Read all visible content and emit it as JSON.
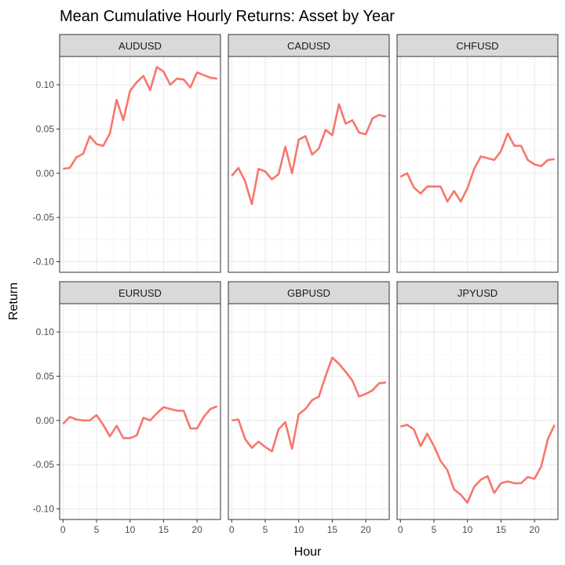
{
  "chart_data": {
    "type": "line",
    "title": "Mean Cumulative Hourly Returns: Asset by Year",
    "xlabel": "Hour",
    "ylabel": "Return",
    "xlim": [
      -0.5,
      23.5
    ],
    "ylim": [
      -0.112,
      0.132
    ],
    "x_ticks": [
      0,
      5,
      10,
      15,
      20
    ],
    "x_tick_labels": [
      "0",
      "5",
      "10",
      "15",
      "20"
    ],
    "y_ticks": [
      -0.1,
      -0.05,
      0.0,
      0.05,
      0.1
    ],
    "y_tick_labels": [
      "-0.10",
      "-0.05",
      "0.00",
      "0.05",
      "0.10"
    ],
    "grid": true,
    "line_color": "#F8766D",
    "x": [
      0,
      1,
      2,
      3,
      4,
      5,
      6,
      7,
      8,
      9,
      10,
      11,
      12,
      13,
      14,
      15,
      16,
      17,
      18,
      19,
      20,
      21,
      22,
      23
    ],
    "panels": [
      {
        "name": "AUDUSD",
        "values": [
          0.005,
          0.006,
          0.018,
          0.022,
          0.042,
          0.033,
          0.031,
          0.045,
          0.083,
          0.06,
          0.093,
          0.103,
          0.11,
          0.094,
          0.12,
          0.115,
          0.1,
          0.107,
          0.106,
          0.097,
          0.114,
          0.111,
          0.108,
          0.107
        ]
      },
      {
        "name": "CADUSD",
        "values": [
          -0.003,
          0.006,
          -0.009,
          -0.035,
          0.005,
          0.002,
          -0.007,
          -0.001,
          0.03,
          0.0,
          0.038,
          0.042,
          0.021,
          0.028,
          0.049,
          0.043,
          0.078,
          0.056,
          0.06,
          0.046,
          0.044,
          0.062,
          0.066,
          0.064
        ]
      },
      {
        "name": "CHFUSD",
        "values": [
          -0.004,
          0.0,
          -0.016,
          -0.023,
          -0.015,
          -0.015,
          -0.015,
          -0.032,
          -0.02,
          -0.032,
          -0.017,
          0.005,
          0.019,
          0.017,
          0.015,
          0.025,
          0.045,
          0.031,
          0.031,
          0.015,
          0.01,
          0.008,
          0.015,
          0.016
        ]
      },
      {
        "name": "EURUSD",
        "values": [
          -0.004,
          0.004,
          0.001,
          0.0,
          0.0,
          0.006,
          -0.005,
          -0.018,
          -0.006,
          -0.02,
          -0.02,
          -0.017,
          0.003,
          0.0,
          0.008,
          0.015,
          0.013,
          0.011,
          0.011,
          -0.009,
          -0.009,
          0.004,
          0.013,
          0.016
        ]
      },
      {
        "name": "GBPUSD",
        "values": [
          0.0,
          0.001,
          -0.021,
          -0.031,
          -0.024,
          -0.03,
          -0.035,
          -0.01,
          -0.002,
          -0.032,
          0.007,
          0.013,
          0.023,
          0.027,
          0.05,
          0.071,
          0.064,
          0.055,
          0.045,
          0.027,
          0.03,
          0.034,
          0.042,
          0.043
        ]
      },
      {
        "name": "JPYUSD",
        "values": [
          -0.007,
          -0.005,
          -0.01,
          -0.029,
          -0.015,
          -0.029,
          -0.046,
          -0.056,
          -0.078,
          -0.084,
          -0.093,
          -0.075,
          -0.067,
          -0.063,
          -0.082,
          -0.071,
          -0.069,
          -0.071,
          -0.071,
          -0.064,
          -0.066,
          -0.052,
          -0.021,
          -0.005
        ]
      }
    ]
  }
}
